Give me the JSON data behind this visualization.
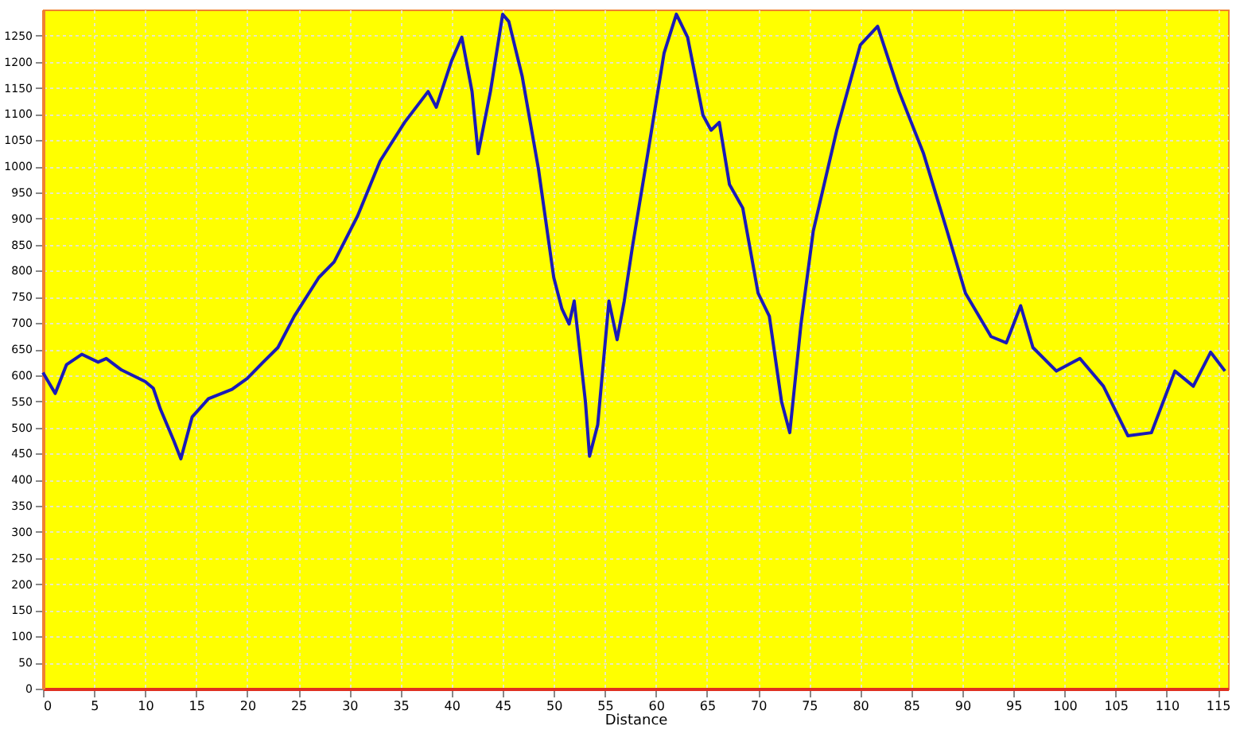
{
  "chart_data": {
    "type": "line",
    "xlabel": "Distance",
    "x": [
      0,
      1.2,
      2.3,
      3.8,
      5.4,
      6.2,
      7.7,
      10,
      10.8,
      11.5,
      12.8,
      13.5,
      14.6,
      16.2,
      18.5,
      20,
      21.5,
      23,
      24.6,
      27,
      28.5,
      30.8,
      33,
      35.4,
      37.7,
      38.5,
      40,
      41,
      42,
      42.6,
      43.8,
      45,
      45.6,
      46.9,
      48.5,
      50,
      50.8,
      51.5,
      52,
      53.1,
      53.5,
      54.3,
      55.4,
      56.2,
      56.9,
      57.7,
      59.2,
      60.8,
      62,
      63.1,
      64.6,
      65.4,
      66.2,
      67.2,
      68.5,
      70,
      71.1,
      72.3,
      73.1,
      74.2,
      75.4,
      77.7,
      80,
      81.7,
      83.8,
      86.2,
      88.5,
      90.3,
      92.8,
      94.3,
      95.7,
      96.9,
      99.2,
      101.5,
      103.8,
      106.2,
      108.5,
      110.8,
      112.6,
      114.3,
      115.7
    ],
    "series": [
      {
        "color": "#1a1ab8",
        "values": [
          605,
          565,
          620,
          640,
          625,
          632,
          610,
          588,
          575,
          535,
          475,
          440,
          520,
          555,
          573,
          594,
          624,
          653,
          713,
          787,
          817,
          905,
          1010,
          1084,
          1143,
          1113,
          1202,
          1247,
          1143,
          1024,
          1143,
          1291,
          1277,
          1173,
          995,
          787,
          727,
          698,
          742,
          549,
          445,
          505,
          742,
          668,
          742,
          846,
          1024,
          1217,
          1291,
          1247,
          1098,
          1069,
          1084,
          965,
          920,
          757,
          713,
          549,
          490,
          698,
          876,
          1069,
          1232,
          1268,
          1143,
          1024,
          876,
          757,
          674,
          662,
          733,
          653,
          608,
          632,
          579,
          484,
          490,
          608,
          579,
          644,
          608
        ]
      }
    ],
    "xlim": [
      0,
      116
    ],
    "ylim": [
      0,
      1300
    ],
    "xticks": [
      0,
      5,
      10,
      15,
      20,
      25,
      30,
      35,
      40,
      45,
      50,
      55,
      60,
      65,
      70,
      75,
      80,
      85,
      90,
      95,
      100,
      105,
      110,
      115
    ],
    "yticks": [
      0,
      50,
      100,
      150,
      200,
      250,
      300,
      350,
      400,
      450,
      500,
      550,
      600,
      650,
      700,
      750,
      800,
      850,
      900,
      950,
      1000,
      1050,
      1100,
      1150,
      1200,
      1250
    ],
    "grid": true,
    "line_style": "solid",
    "marker": "none"
  }
}
